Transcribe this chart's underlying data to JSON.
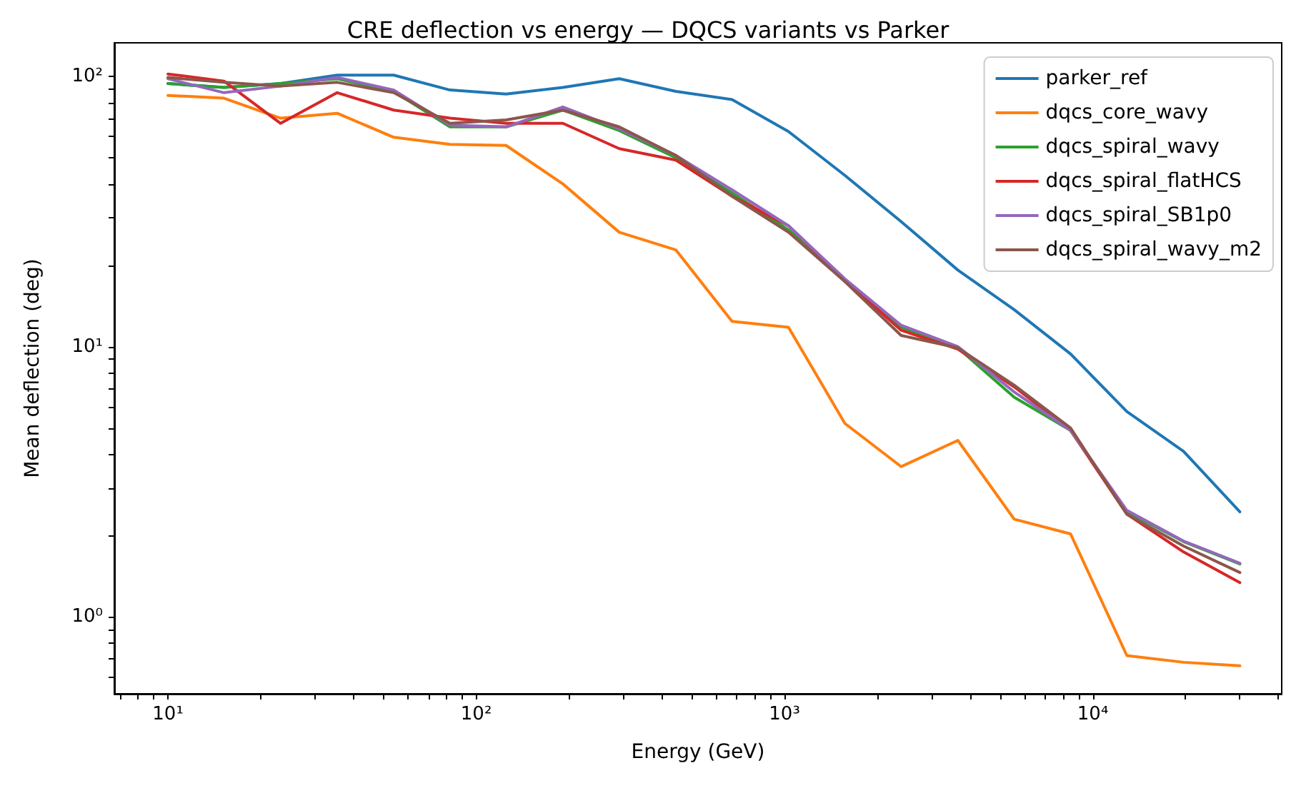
{
  "chart_data": {
    "type": "line",
    "title": "CRE deflection vs energy — DQCS variants vs Parker",
    "xlabel": "Energy (GeV)",
    "ylabel": "Mean deflection (deg)",
    "x": [
      10,
      15.2,
      23.2,
      35.4,
      54,
      82.2,
      125,
      191,
      291,
      444,
      676,
      1030,
      1570,
      2390,
      3650,
      5560,
      8470,
      12900,
      19700,
      30000
    ],
    "series": [
      {
        "name": "parker_ref",
        "color": "#1f77b4",
        "values": [
          94,
          91,
          94,
          101,
          101,
          89,
          86,
          91,
          98,
          88,
          82,
          62.5,
          43,
          29,
          19.2,
          13.7,
          9.4,
          5.75,
          4.1,
          2.45
        ]
      },
      {
        "name": "dqcs_core_wavy",
        "color": "#ff7f0e",
        "values": [
          85,
          83,
          70,
          73,
          59.5,
          56,
          55.5,
          40,
          26.5,
          22.8,
          12.4,
          11.8,
          5.2,
          3.6,
          4.5,
          2.3,
          2.03,
          0.72,
          0.68,
          0.66
        ]
      },
      {
        "name": "dqcs_spiral_wavy",
        "color": "#2ca02c",
        "values": [
          94,
          91,
          94,
          98,
          88,
          65,
          65,
          75,
          63,
          50,
          37,
          27,
          17.6,
          11.8,
          9.9,
          6.5,
          4.9,
          2.45,
          1.9,
          1.57
        ]
      },
      {
        "name": "dqcs_spiral_flatHCS",
        "color": "#d62728",
        "values": [
          102,
          96,
          67,
          87,
          75,
          70,
          67,
          67,
          54,
          49,
          36,
          28,
          17.6,
          11.5,
          9.8,
          7.1,
          4.9,
          2.4,
          1.74,
          1.34
        ]
      },
      {
        "name": "dqcs_spiral_SB1p0",
        "color": "#9467bd",
        "values": [
          98,
          87,
          92,
          99,
          89,
          66,
          65,
          77,
          64,
          51,
          38,
          28,
          17.8,
          12,
          10,
          6.8,
          4.9,
          2.48,
          1.91,
          1.58
        ]
      },
      {
        "name": "dqcs_spiral_wavy_m2",
        "color": "#8c564b",
        "values": [
          99,
          95,
          92,
          95,
          87,
          67,
          69,
          75,
          65,
          51,
          36,
          26.5,
          17.4,
          11,
          9.9,
          7.2,
          5,
          2.4,
          1.83,
          1.46
        ]
      }
    ],
    "log": "xy",
    "xlim": [
      6.7,
      41000
    ],
    "ylim": [
      0.52,
      133
    ],
    "xticks": [
      {
        "value": 7,
        "label": null
      },
      {
        "value": 8,
        "label": null
      },
      {
        "value": 9,
        "label": null
      },
      {
        "value": 10,
        "label": "10¹"
      },
      {
        "value": 20,
        "label": null
      },
      {
        "value": 30,
        "label": null
      },
      {
        "value": 40,
        "label": null
      },
      {
        "value": 50,
        "label": null
      },
      {
        "value": 60,
        "label": null
      },
      {
        "value": 70,
        "label": null
      },
      {
        "value": 80,
        "label": null
      },
      {
        "value": 90,
        "label": null
      },
      {
        "value": 100,
        "label": "10²"
      },
      {
        "value": 200,
        "label": null
      },
      {
        "value": 300,
        "label": null
      },
      {
        "value": 400,
        "label": null
      },
      {
        "value": 500,
        "label": null
      },
      {
        "value": 600,
        "label": null
      },
      {
        "value": 700,
        "label": null
      },
      {
        "value": 800,
        "label": null
      },
      {
        "value": 900,
        "label": null
      },
      {
        "value": 1000,
        "label": "10³"
      },
      {
        "value": 2000,
        "label": null
      },
      {
        "value": 3000,
        "label": null
      },
      {
        "value": 4000,
        "label": null
      },
      {
        "value": 5000,
        "label": null
      },
      {
        "value": 6000,
        "label": null
      },
      {
        "value": 7000,
        "label": null
      },
      {
        "value": 8000,
        "label": null
      },
      {
        "value": 9000,
        "label": null
      },
      {
        "value": 10000,
        "label": "10⁴"
      },
      {
        "value": 20000,
        "label": null
      },
      {
        "value": 30000,
        "label": null
      },
      {
        "value": 40000,
        "label": null
      }
    ],
    "yticks": [
      {
        "value": 0.6,
        "label": null
      },
      {
        "value": 0.7,
        "label": null
      },
      {
        "value": 0.8,
        "label": null
      },
      {
        "value": 0.9,
        "label": null
      },
      {
        "value": 1,
        "label": "10⁰"
      },
      {
        "value": 2,
        "label": null
      },
      {
        "value": 3,
        "label": null
      },
      {
        "value": 4,
        "label": null
      },
      {
        "value": 5,
        "label": null
      },
      {
        "value": 6,
        "label": null
      },
      {
        "value": 7,
        "label": null
      },
      {
        "value": 8,
        "label": null
      },
      {
        "value": 9,
        "label": null
      },
      {
        "value": 10,
        "label": "10¹"
      },
      {
        "value": 20,
        "label": null
      },
      {
        "value": 30,
        "label": null
      },
      {
        "value": 40,
        "label": null
      },
      {
        "value": 50,
        "label": null
      },
      {
        "value": 60,
        "label": null
      },
      {
        "value": 70,
        "label": null
      },
      {
        "value": 80,
        "label": null
      },
      {
        "value": 90,
        "label": null
      },
      {
        "value": 100,
        "label": "10²"
      }
    ],
    "legend": "top right",
    "grid": false,
    "marker": "none",
    "line_style": "solid"
  }
}
